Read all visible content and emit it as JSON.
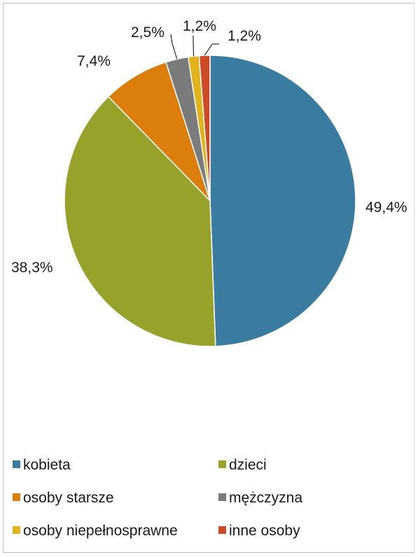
{
  "chart_data": {
    "type": "pie",
    "title": "",
    "legend_position": "bottom",
    "slices": [
      {
        "label": "kobieta",
        "value": 49.4,
        "display": "49,4%",
        "color": "#3a7ca0"
      },
      {
        "label": "dzieci",
        "value": 38.3,
        "display": "38,3%",
        "color": "#97a22a"
      },
      {
        "label": "osoby starsze",
        "value": 7.4,
        "display": "7,4%",
        "color": "#dc7e0c"
      },
      {
        "label": "mężczyzna",
        "value": 2.5,
        "display": "2,5%",
        "color": "#7b7b7b"
      },
      {
        "label": "osoby niepełnosprawne",
        "value": 1.2,
        "display": "1,2%",
        "color": "#e1b31c"
      },
      {
        "label": "inne osoby",
        "value": 1.2,
        "display": "1,2%",
        "color": "#cc4a26"
      }
    ]
  }
}
